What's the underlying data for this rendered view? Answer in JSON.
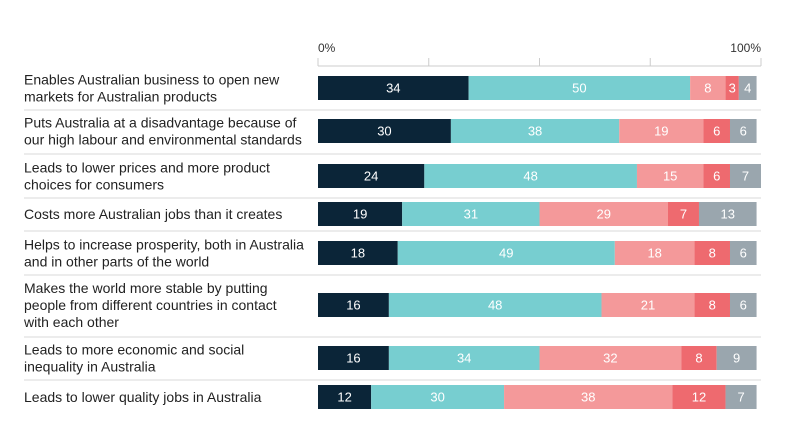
{
  "chart_data": {
    "type": "bar",
    "orientation": "horizontal",
    "stacked": true,
    "xlim": [
      0,
      100
    ],
    "tick_labels": [
      "0%",
      "100%"
    ],
    "categories": [
      [
        "Enables Australian business to open new",
        "markets for Australian products"
      ],
      [
        "Puts Australia at a disadvantage because of",
        "our high labour and environmental standards"
      ],
      [
        "Leads to lower prices and more product",
        "choices for consumers"
      ],
      [
        "Costs more Australian jobs than it creates"
      ],
      [
        "Helps to increase prosperity, both in Australia",
        "and in other parts of the world"
      ],
      [
        "Makes the world more stable by putting",
        "people from different countries in contact",
        "with each other"
      ],
      [
        "Leads to more economic and social",
        "inequality in Australia"
      ],
      [
        "Leads to lower quality jobs in Australia"
      ]
    ],
    "series": [
      {
        "color": "#0b2538",
        "values": [
          34,
          30,
          24,
          19,
          18,
          16,
          16,
          12
        ]
      },
      {
        "color": "#77ced0",
        "values": [
          50,
          38,
          48,
          31,
          49,
          48,
          34,
          30
        ]
      },
      {
        "color": "#f4999a",
        "values": [
          8,
          19,
          15,
          29,
          18,
          21,
          32,
          38
        ]
      },
      {
        "color": "#ee6a6f",
        "values": [
          3,
          6,
          6,
          7,
          8,
          8,
          8,
          12
        ]
      },
      {
        "color": "#9aa6ae",
        "values": [
          4,
          6,
          7,
          13,
          6,
          6,
          9,
          7
        ]
      }
    ],
    "grid": true,
    "legend": "none"
  }
}
